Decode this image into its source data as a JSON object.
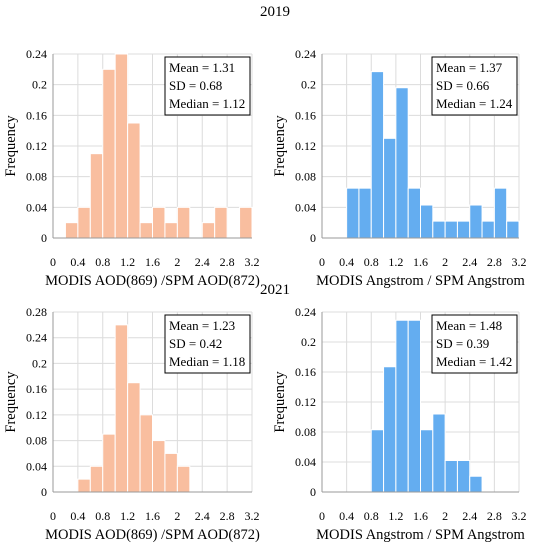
{
  "years": [
    "2019",
    "2021"
  ],
  "colors": {
    "orange": "#F9BE9F",
    "blue": "#64ADF0",
    "grid": "#dcdcdc",
    "axis": "#9a9a9a"
  },
  "chart_data": [
    {
      "type": "bar",
      "color": "orange",
      "xlabel": "MODIS AOD(869) /SPM AOD(872)",
      "ylabel": "Frequency",
      "xlim": [
        0,
        3.2
      ],
      "ylim": [
        0,
        0.24
      ],
      "xticks": [
        "0",
        "0.4",
        "0.8",
        "1.2",
        "1.6",
        "2",
        "2.4",
        "2.8",
        "3.2"
      ],
      "yticks": [
        "0",
        "0.04",
        "0.08",
        "0.12",
        "0.16",
        "0.2",
        "0.24"
      ],
      "bin_width": 0.2,
      "bin_starts": [
        0.2,
        0.4,
        0.6,
        0.8,
        1.0,
        1.2,
        1.4,
        1.6,
        1.8,
        2.0,
        2.2,
        2.4,
        2.6,
        2.8,
        3.0
      ],
      "values": [
        0.02,
        0.04,
        0.11,
        0.22,
        0.24,
        0.15,
        0.02,
        0.04,
        0.02,
        0.04,
        0,
        0.02,
        0.04,
        0,
        0.04
      ],
      "stats": [
        "Mean = 1.31",
        "SD = 0.68",
        "Median = 1.12"
      ]
    },
    {
      "type": "bar",
      "color": "blue",
      "xlabel": "MODIS Angstrom / SPM Angstrom",
      "ylabel": "Frequency",
      "xlim": [
        0,
        3.2
      ],
      "ylim": [
        0,
        0.24
      ],
      "xticks": [
        "0",
        "0.4",
        "0.8",
        "1.2",
        "1.6",
        "2",
        "2.4",
        "2.8",
        "3.2"
      ],
      "yticks": [
        "0",
        "0.04",
        "0.08",
        "0.12",
        "0.16",
        "0.2",
        "0.24"
      ],
      "bin_width": 0.2,
      "bin_starts": [
        0.4,
        0.6,
        0.8,
        1.0,
        1.2,
        1.4,
        1.6,
        1.8,
        2.0,
        2.2,
        2.4,
        2.6,
        2.8,
        3.0
      ],
      "values": [
        0.065,
        0.065,
        0.217,
        0.13,
        0.196,
        0.065,
        0.043,
        0.022,
        0.022,
        0.022,
        0.043,
        0.022,
        0.065,
        0.022
      ],
      "stats": [
        "Mean = 1.37",
        "SD = 0.66",
        "Median = 1.24"
      ]
    },
    {
      "type": "bar",
      "color": "orange",
      "xlabel": "MODIS AOD(869) /SPM AOD(872)",
      "ylabel": "Frequency",
      "xlim": [
        0,
        3.2
      ],
      "ylim": [
        0,
        0.28
      ],
      "xticks": [
        "0",
        "0.4",
        "0.8",
        "1.2",
        "1.6",
        "2",
        "2.4",
        "2.8",
        "3.2"
      ],
      "yticks": [
        "0",
        "0.04",
        "0.08",
        "0.12",
        "0.16",
        "0.2",
        "0.24",
        "0.28"
      ],
      "bin_width": 0.2,
      "bin_starts": [
        0.4,
        0.6,
        0.8,
        1.0,
        1.2,
        1.4,
        1.6,
        1.8,
        2.0
      ],
      "values": [
        0.02,
        0.04,
        0.09,
        0.26,
        0.17,
        0.12,
        0.08,
        0.06,
        0.04
      ],
      "stats": [
        "Mean = 1.23",
        "SD = 0.42",
        "Median = 1.18"
      ]
    },
    {
      "type": "bar",
      "color": "blue",
      "xlabel": "MODIS Angstrom / SPM Angstrom",
      "ylabel": "Frequency",
      "xlim": [
        0,
        3.2
      ],
      "ylim": [
        0,
        0.24
      ],
      "xticks": [
        "0",
        "0.4",
        "0.8",
        "1.2",
        "1.6",
        "2",
        "2.4",
        "2.8",
        "3.2"
      ],
      "yticks": [
        "0",
        "0.04",
        "0.08",
        "0.12",
        "0.16",
        "0.2",
        "0.24"
      ],
      "bin_width": 0.2,
      "bin_starts": [
        0.8,
        1.0,
        1.2,
        1.4,
        1.6,
        1.8,
        2.0,
        2.2,
        2.4
      ],
      "values": [
        0.083,
        0.167,
        0.229,
        0.229,
        0.083,
        0.104,
        0.042,
        0.042,
        0.021
      ],
      "stats": [
        "Mean = 1.48",
        "SD = 0.39",
        "Median = 1.42"
      ]
    }
  ]
}
